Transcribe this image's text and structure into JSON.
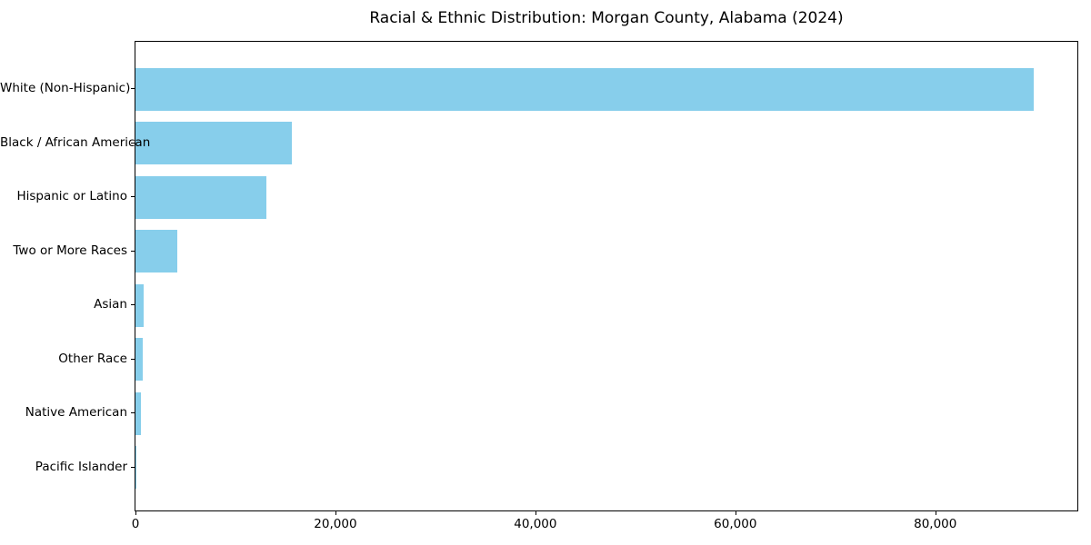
{
  "chart": {
    "title": "Racial & Ethnic Distribution: Morgan County, Alabama (2024)"
  },
  "chart_data": {
    "type": "bar",
    "orientation": "horizontal",
    "title": "Racial & Ethnic Distribution: Morgan County, Alabama (2024)",
    "categories": [
      "White (Non-Hispanic)",
      "Black / African American",
      "Hispanic or Latino",
      "Two or More Races",
      "Asian",
      "Other Race",
      "Native American",
      "Pacific Islander"
    ],
    "values": [
      89800,
      15600,
      13100,
      4200,
      850,
      700,
      500,
      60
    ],
    "xlabel": "",
    "ylabel": "",
    "xlim": [
      0,
      94300
    ],
    "x_ticks": [
      0,
      20000,
      40000,
      60000,
      80000
    ],
    "x_tick_labels": [
      "0",
      "20,000",
      "40,000",
      "60,000",
      "80,000"
    ],
    "bar_color": "#87CEEB",
    "text_color": "#000000",
    "grid": false,
    "legend": false
  }
}
